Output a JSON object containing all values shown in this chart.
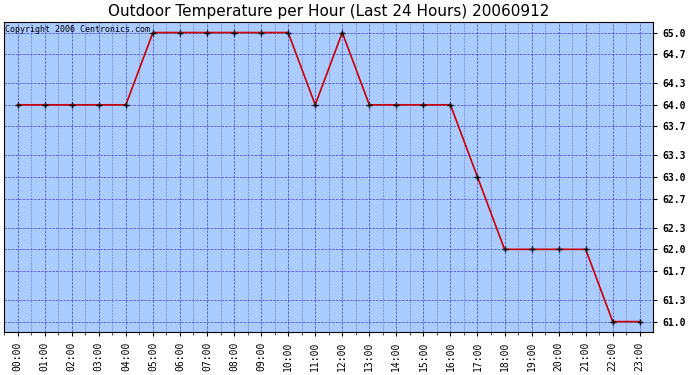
{
  "title": "Outdoor Temperature per Hour (Last 24 Hours) 20060912",
  "copyright_text": "Copyright 2006 Centronics.com",
  "hours": [
    0,
    1,
    2,
    3,
    4,
    5,
    6,
    7,
    8,
    9,
    10,
    11,
    12,
    13,
    14,
    15,
    16,
    17,
    18,
    19,
    20,
    21,
    22,
    23
  ],
  "temps": [
    64.0,
    64.0,
    64.0,
    64.0,
    64.0,
    65.0,
    65.0,
    65.0,
    65.0,
    65.0,
    65.0,
    64.0,
    65.0,
    64.0,
    64.0,
    64.0,
    64.0,
    63.0,
    62.0,
    62.0,
    62.0,
    62.0,
    61.0,
    61.0
  ],
  "x_labels": [
    "00:00",
    "01:00",
    "02:00",
    "03:00",
    "04:00",
    "05:00",
    "06:00",
    "07:00",
    "08:00",
    "09:00",
    "10:00",
    "11:00",
    "12:00",
    "13:00",
    "14:00",
    "15:00",
    "16:00",
    "17:00",
    "18:00",
    "19:00",
    "20:00",
    "21:00",
    "22:00",
    "23:00"
  ],
  "y_ticks": [
    61.0,
    61.3,
    61.7,
    62.0,
    62.3,
    62.7,
    63.0,
    63.3,
    63.7,
    64.0,
    64.3,
    64.7,
    65.0
  ],
  "ylim": [
    60.85,
    65.15
  ],
  "xlim": [
    -0.5,
    23.5
  ],
  "line_color": "#cc0000",
  "bg_color": "#aaccff",
  "grid_color": "#3333cc",
  "title_fontsize": 11,
  "copyright_fontsize": 6,
  "tick_fontsize": 7,
  "fig_width": 6.9,
  "fig_height": 3.75,
  "dpi": 100
}
